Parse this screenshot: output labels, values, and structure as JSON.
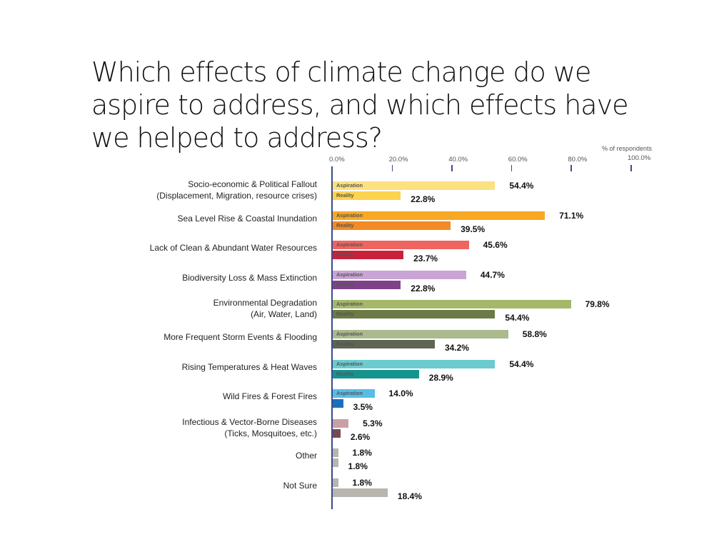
{
  "title": "Which effects of climate change do we aspire to address, and which effects have we helped to address?",
  "axis": {
    "caption": "% of respondents",
    "ticks": [
      "0.0%",
      "20.0%",
      "40.0%",
      "60.0%",
      "80.0%",
      "100.0%"
    ]
  },
  "bar_labels": {
    "aspiration": "Aspiration",
    "reality": "Reality"
  },
  "chart_data": {
    "type": "bar",
    "orientation": "horizontal",
    "title": "Which effects of climate change do we aspire to address, and which effects have we helped to address?",
    "xlabel": "% of respondents",
    "xlim": [
      0,
      100
    ],
    "x_ticks": [
      "0.0%",
      "20.0%",
      "40.0%",
      "60.0%",
      "80.0%",
      "100.0%"
    ],
    "grid": false,
    "categories": [
      "Socio-economic & Political Fallout (Displacement, Migration, resource crises)",
      "Sea Level Rise & Coastal Inundation",
      "Lack of Clean & Abundant Water Resources",
      "Biodiversity Loss & Mass Extinction",
      "Environmental Degradation (Air, Water, Land)",
      "More Frequent Storm Events & Flooding",
      "Rising Temperatures & Heat Waves",
      "Wild Fires & Forest Fires",
      "Infectious & Vector-Borne Diseases (Ticks, Mosquitoes, etc.)",
      "Other",
      "Not Sure"
    ],
    "series": [
      {
        "name": "Aspiration",
        "values": [
          54.4,
          71.1,
          45.6,
          44.7,
          79.8,
          58.8,
          54.4,
          14.0,
          5.3,
          1.8,
          1.8
        ]
      },
      {
        "name": "Reality",
        "values": [
          22.8,
          39.5,
          23.7,
          22.8,
          54.4,
          34.2,
          28.9,
          3.5,
          2.6,
          1.8,
          18.4
        ]
      }
    ]
  },
  "rows": [
    {
      "line1": "Socio-economic & Political Fallout",
      "line2": "(Displacement, Migration, resource crises)",
      "asp": 54.4,
      "real": 22.8,
      "asp_label": "54.4%",
      "real_label": "22.8%",
      "asp_color": "#fbe17f",
      "real_color": "#fcd34d",
      "show_asp_text": true,
      "show_real_text": true
    },
    {
      "line1": "Sea Level Rise & Coastal Inundation",
      "line2": "",
      "asp": 71.1,
      "real": 39.5,
      "asp_label": "71.1%",
      "real_label": "39.5%",
      "asp_color": "#f8a823",
      "real_color": "#f38a24",
      "show_asp_text": true,
      "show_real_text": true
    },
    {
      "line1": "Lack of Clean & Abundant Water Resources",
      "line2": "",
      "asp": 45.6,
      "real": 23.7,
      "asp_label": "45.6%",
      "real_label": "23.7%",
      "asp_color": "#f0645f",
      "real_color": "#c9213a",
      "show_asp_text": true,
      "show_real_text": true
    },
    {
      "line1": "Biodiversity Loss & Mass Extinction",
      "line2": "",
      "asp": 44.7,
      "real": 22.8,
      "asp_label": "44.7%",
      "real_label": "22.8%",
      "asp_color": "#c9a4d4",
      "real_color": "#7f4288",
      "show_asp_text": true,
      "show_real_text": true
    },
    {
      "line1": "Environmental Degradation",
      "line2": "(Air, Water, Land)",
      "asp": 79.8,
      "real": 54.4,
      "asp_label": "79.8%",
      "real_label": "54.4%",
      "asp_color": "#a5b86a",
      "real_color": "#6b7a46",
      "show_asp_text": true,
      "show_real_text": true
    },
    {
      "line1": "More Frequent Storm Events & Flooding",
      "line2": "",
      "asp": 58.8,
      "real": 34.2,
      "asp_label": "58.8%",
      "real_label": "34.2%",
      "asp_color": "#abb98e",
      "real_color": "#5d6652",
      "show_asp_text": true,
      "show_real_text": true
    },
    {
      "line1": "Rising Temperatures & Heat Waves",
      "line2": "",
      "asp": 54.4,
      "real": 28.9,
      "asp_label": "54.4%",
      "real_label": "28.9%",
      "asp_color": "#6ccbce",
      "real_color": "#15938f",
      "show_asp_text": true,
      "show_real_text": true
    },
    {
      "line1": "Wild Fires & Forest Fires",
      "line2": "",
      "asp": 14.0,
      "real": 3.5,
      "asp_label": "14.0%",
      "real_label": "3.5%",
      "asp_color": "#56bde8",
      "real_color": "#1a6fba",
      "show_asp_text": true,
      "show_real_text": false
    },
    {
      "line1": "Infectious & Vector-Borne Diseases",
      "line2": "(Ticks, Mosquitoes, etc.)",
      "asp": 5.3,
      "real": 2.6,
      "asp_label": "5.3%",
      "real_label": "2.6%",
      "asp_color": "#c9a0a4",
      "real_color": "#744a50",
      "show_asp_text": false,
      "show_real_text": false
    },
    {
      "line1": "Other",
      "line2": "",
      "asp": 1.8,
      "real": 1.8,
      "asp_label": "1.8%",
      "real_label": "1.8%",
      "asp_color": "#b8b4ae",
      "real_color": "#b8b4ae",
      "show_asp_text": false,
      "show_real_text": false
    },
    {
      "line1": "Not Sure",
      "line2": "",
      "asp": 1.8,
      "real": 18.4,
      "asp_label": "1.8%",
      "real_label": "18.4%",
      "asp_color": "#b8b4ae",
      "real_color": "#b8b4ae",
      "show_asp_text": false,
      "show_real_text": false
    }
  ]
}
